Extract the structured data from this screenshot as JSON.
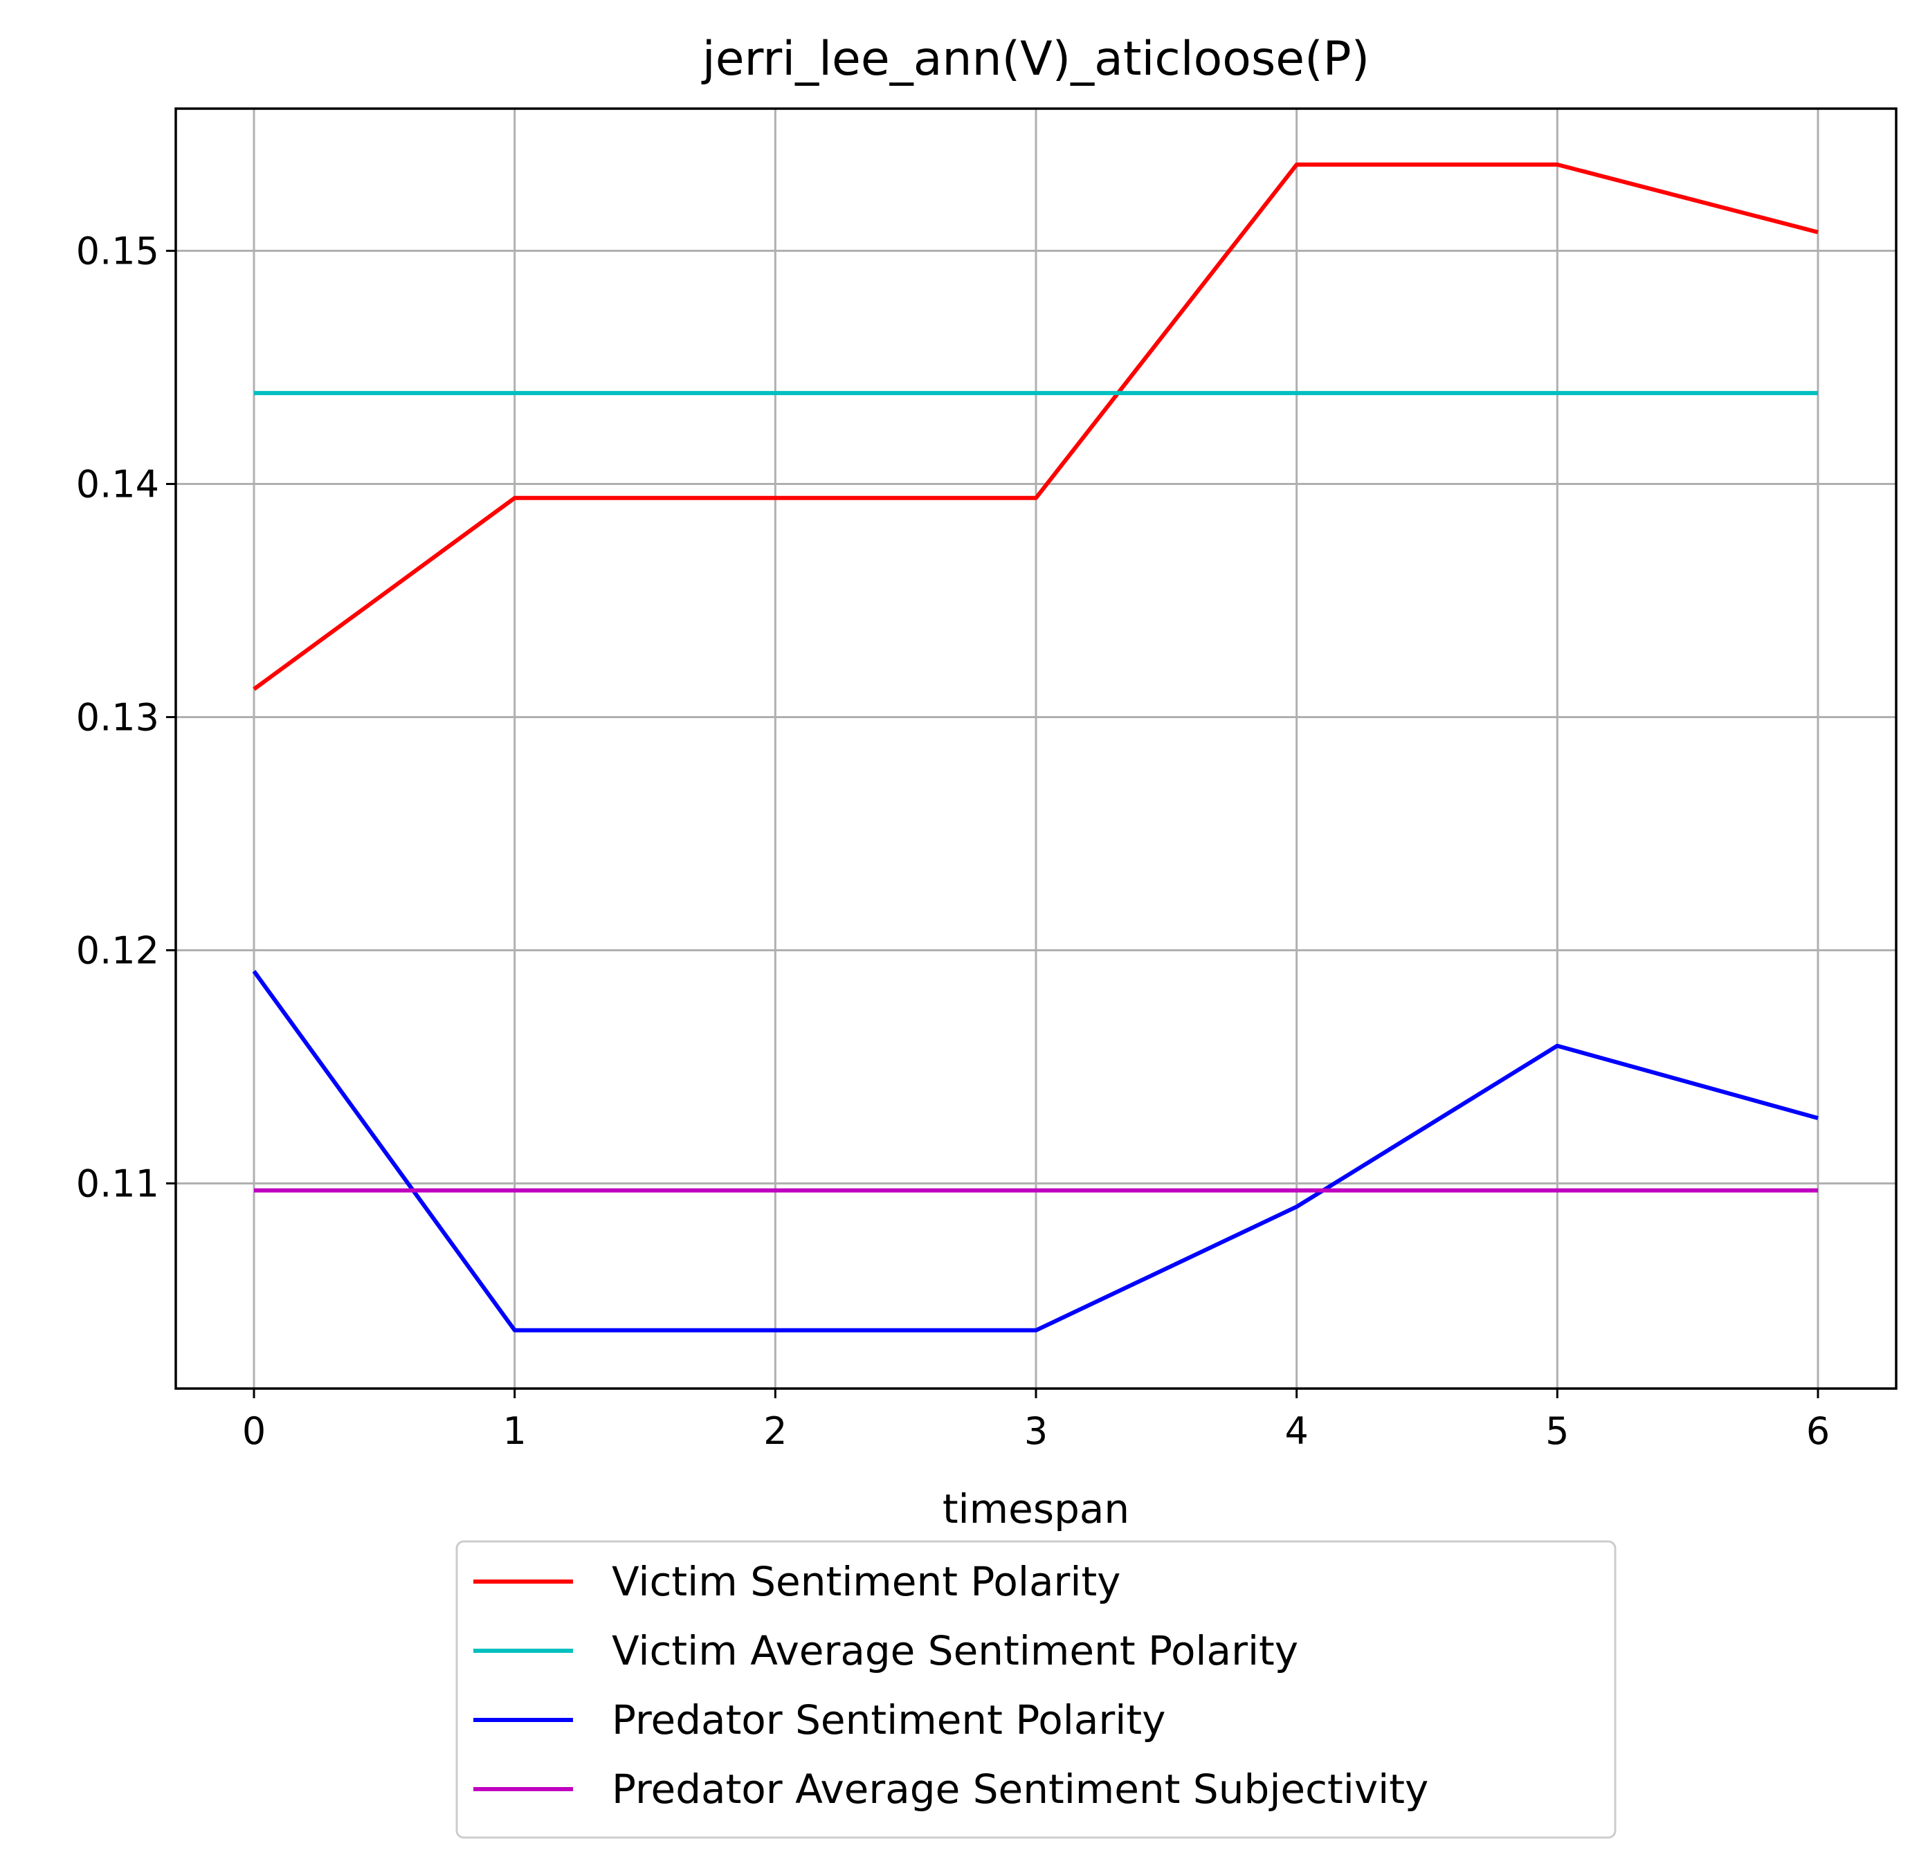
{
  "chart_data": {
    "type": "line",
    "title": "jerri_lee_ann(V)_aticloose(P)",
    "xlabel": "timespan",
    "ylabel": "",
    "x": [
      0,
      1,
      2,
      3,
      4,
      5,
      6
    ],
    "xlim": [
      -0.3,
      6.3
    ],
    "ylim": [
      0.1012,
      0.1561
    ],
    "x_ticks": [
      "0",
      "1",
      "2",
      "3",
      "4",
      "5",
      "6"
    ],
    "y_ticks": [
      {
        "value": 0.11,
        "label": "0.11"
      },
      {
        "value": 0.12,
        "label": "0.12"
      },
      {
        "value": 0.13,
        "label": "0.13"
      },
      {
        "value": 0.14,
        "label": "0.14"
      },
      {
        "value": 0.15,
        "label": "0.15"
      }
    ],
    "grid": true,
    "legend_position": "below",
    "series": [
      {
        "name": "Victim Sentiment Polarity",
        "color": "#ff0000",
        "values": [
          0.1312,
          0.1394,
          0.1394,
          0.1394,
          0.1537,
          0.1537,
          0.1508
        ]
      },
      {
        "name": "Victim Average Sentiment Polarity",
        "color": "#00bfbf",
        "values": [
          0.1439,
          0.1439,
          0.1439,
          0.1439,
          0.1439,
          0.1439,
          0.1439
        ]
      },
      {
        "name": "Predator Sentiment Polarity",
        "color": "#0000ff",
        "values": [
          0.1191,
          0.1037,
          0.1037,
          0.1037,
          0.109,
          0.1159,
          0.1128
        ]
      },
      {
        "name": "Predator Average Sentiment Subjectivity",
        "color": "#bf00bf",
        "values": [
          0.1097,
          0.1097,
          0.1097,
          0.1097,
          0.1097,
          0.1097,
          0.1097
        ]
      }
    ]
  }
}
